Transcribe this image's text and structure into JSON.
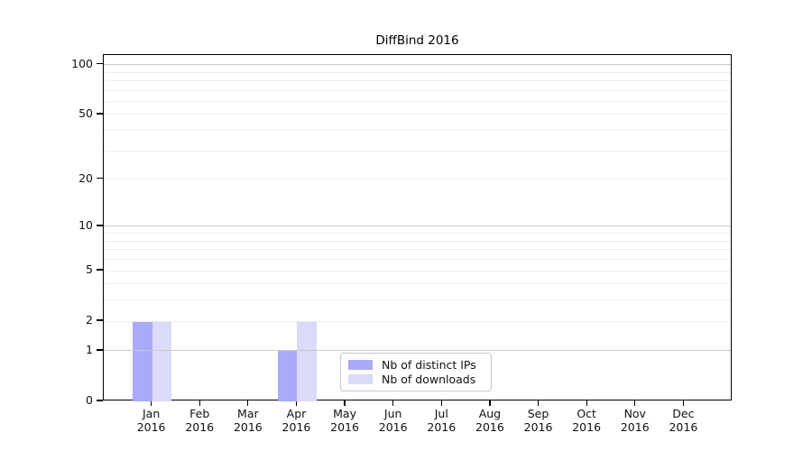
{
  "chart_data": {
    "type": "bar",
    "title": "DiffBind 2016",
    "categories": [
      "Jan 2016",
      "Feb 2016",
      "Mar 2016",
      "Apr 2016",
      "May 2016",
      "Jun 2016",
      "Jul 2016",
      "Aug 2016",
      "Sep 2016",
      "Oct 2016",
      "Nov 2016",
      "Dec 2016"
    ],
    "series": [
      {
        "name": "Nb of distinct IPs",
        "color": "#a9abf8",
        "values": [
          2,
          0,
          0,
          1,
          0,
          0,
          0,
          0,
          0,
          0,
          0,
          0
        ]
      },
      {
        "name": "Nb of downloads",
        "color": "#d9dbf8",
        "values": [
          2,
          0,
          0,
          2,
          0,
          0,
          0,
          0,
          0,
          0,
          0,
          0
        ]
      }
    ],
    "xlabel": "",
    "ylabel": "",
    "yticks": [
      0,
      1,
      2,
      5,
      10,
      20,
      50,
      100
    ],
    "grid_major": [
      1,
      10,
      100
    ],
    "grid_minor": [
      2,
      3,
      4,
      5,
      6,
      7,
      8,
      9,
      20,
      30,
      40,
      50,
      60,
      70,
      80,
      90
    ],
    "scale": "log10(1+x)",
    "ylim": [
      0,
      113
    ],
    "grid": true,
    "legend_position": "bottom-center"
  },
  "colors": {
    "background": "#ffffff",
    "axis": "#000000",
    "text": "#111111",
    "grid_major": "#c9c9c9",
    "grid_minor": "#ededed",
    "legend_border": "#c8c8c8"
  }
}
